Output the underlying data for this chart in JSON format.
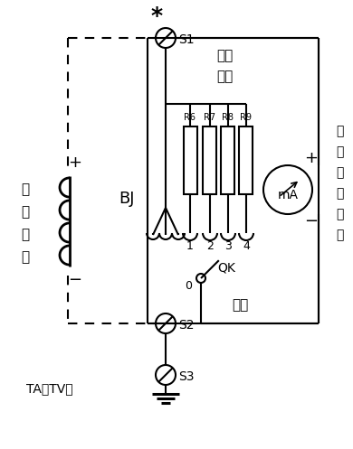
{
  "bg_color": "#ffffff",
  "line_color": "#000000",
  "figsize": [
    3.9,
    4.97
  ],
  "dpi": 100,
  "labels": {
    "star": "*",
    "S1": "S1",
    "S2": "S2",
    "S3": "S3",
    "BJ": "BJ",
    "plus_top": "+",
    "minus_bottom": "−",
    "hong_zhu": "红柱",
    "shu_ru": "输入",
    "hei_zhu": "黑柱",
    "TA_TV": "TA（TV）",
    "QK": "QK",
    "mA": "mA",
    "r_labels": [
      "R6",
      "R7",
      "R8",
      "R9"
    ],
    "num_labels": [
      "1",
      "2",
      "3",
      "4"
    ],
    "num0": "0",
    "plus_meter": "+",
    "minus_meter": "−",
    "em_chars": [
      "电",
      "磁",
      "式",
      "毫",
      "安",
      "表"
    ],
    "er_ci_chars": [
      "二",
      "次",
      "绕",
      "组"
    ]
  }
}
